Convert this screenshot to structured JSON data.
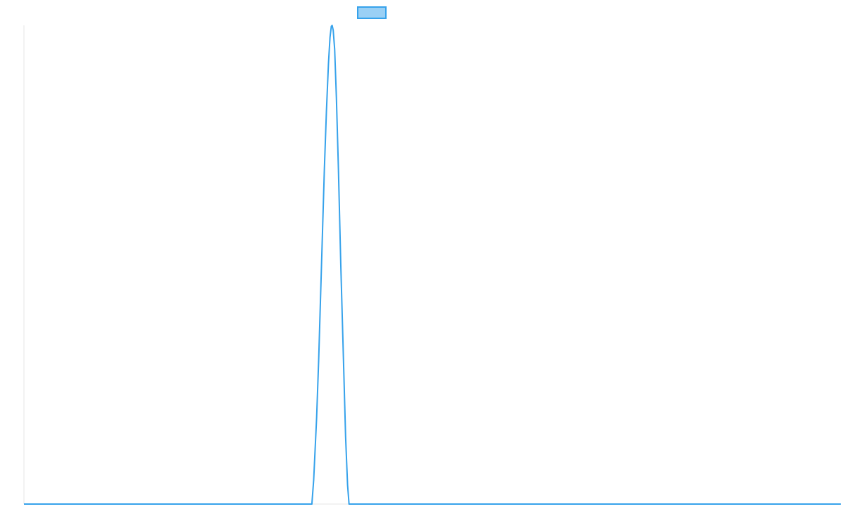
{
  "chart_data": {
    "type": "line",
    "title": "",
    "xlabel": "",
    "ylabel": "",
    "grid": false,
    "legend_position": "top",
    "xlim": [
      0,
      1
    ],
    "ylim": [
      0,
      1
    ],
    "series": [
      {
        "color": "#36a2eb",
        "fill_color": "#9ad0f5",
        "points": [
          [
            0.0,
            0.0
          ],
          [
            0.3525,
            0.0
          ],
          [
            0.3547,
            0.05
          ],
          [
            0.3583,
            0.18
          ],
          [
            0.3608,
            0.3
          ],
          [
            0.3643,
            0.5
          ],
          [
            0.3678,
            0.7
          ],
          [
            0.3703,
            0.82
          ],
          [
            0.3728,
            0.92
          ],
          [
            0.3747,
            0.975
          ],
          [
            0.3763,
            0.998
          ],
          [
            0.3773,
            1.0
          ],
          [
            0.3786,
            0.99
          ],
          [
            0.3804,
            0.95
          ],
          [
            0.3825,
            0.85
          ],
          [
            0.385,
            0.7
          ],
          [
            0.3879,
            0.5
          ],
          [
            0.3912,
            0.3
          ],
          [
            0.3938,
            0.14
          ],
          [
            0.3962,
            0.04
          ],
          [
            0.398,
            0.0
          ],
          [
            1.0,
            0.0
          ]
        ]
      }
    ]
  }
}
